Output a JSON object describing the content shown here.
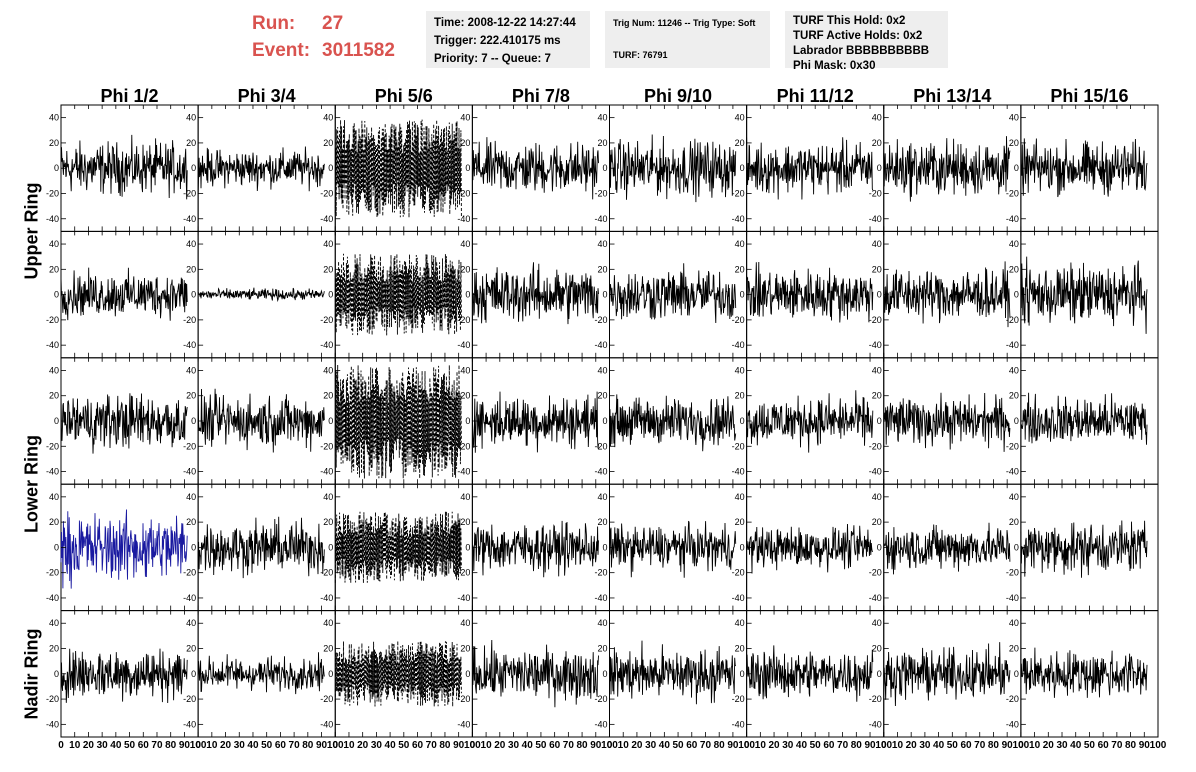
{
  "header": {
    "run_label": "Run:",
    "run_value": "27",
    "event_label": "Event:",
    "event_value": "3011582",
    "time": "Time: 2008-12-22 14:27:44",
    "trigger": "Trigger: 222.410175 ms",
    "priority": "Priority: 7 -- Queue: 7",
    "trig_num": "Trig Num: 11246 -- Trig Type: Soft",
    "turf": "TURF: 76791",
    "turf_this_hold": "TURF This Hold: 0x2",
    "turf_active_holds": "TURF Active Holds: 0x2",
    "labrador": "Labrador BBBBBBBBBB",
    "phi_mask": "Phi Mask: 0x30"
  },
  "colors": {
    "accent_red": "#d9534f",
    "info_bg": "#eeeeee",
    "trace_black": "#000000",
    "trace_blue": "#1a1aa0"
  },
  "chart_data": {
    "type": "line",
    "description_columns": [
      "Phi 1/2",
      "Phi 3/4",
      "Phi 5/6",
      "Phi 7/8",
      "Phi 9/10",
      "Phi 11/12",
      "Phi 13/14",
      "Phi 15/16"
    ],
    "rows": [
      "Upper Ring",
      "Upper Ring",
      "Lower Ring",
      "Lower Ring",
      "Nadir Ring"
    ],
    "ring_labels": [
      {
        "label": "Upper Ring",
        "rows": [
          0,
          1
        ]
      },
      {
        "label": "Lower Ring",
        "rows": [
          2,
          3
        ]
      },
      {
        "label": "Nadir Ring",
        "rows": [
          4,
          4
        ]
      }
    ],
    "xlim": [
      0,
      100
    ],
    "ylim": [
      -50,
      50
    ],
    "x_ticks": [
      0,
      10,
      20,
      30,
      40,
      50,
      60,
      70,
      80,
      90,
      100
    ],
    "x_tick_labels": [
      "0",
      "10",
      "20",
      "30",
      "40",
      "50",
      "60",
      "70",
      "80",
      "90",
      "100"
    ],
    "y_ticks": [
      -40,
      -20,
      0,
      20,
      40
    ],
    "y_tick_labels": [
      "-40",
      "-20",
      "0",
      "20",
      "40"
    ],
    "x_span": [
      0,
      92
    ],
    "trace_amplitude": [
      [
        14,
        10,
        30,
        14,
        15,
        14,
        15,
        14
      ],
      [
        12,
        3,
        25,
        15,
        14,
        14,
        14,
        16
      ],
      [
        15,
        14,
        35,
        14,
        13,
        13,
        13,
        13
      ],
      [
        18,
        14,
        22,
        13,
        12,
        11,
        12,
        14
      ],
      [
        14,
        9,
        20,
        14,
        14,
        13,
        13,
        13
      ]
    ],
    "dashed_column": 2,
    "highlight_panel": {
      "row": 3,
      "col": 0,
      "color": "#1a1aa0"
    },
    "grid": false,
    "legend": "none"
  }
}
